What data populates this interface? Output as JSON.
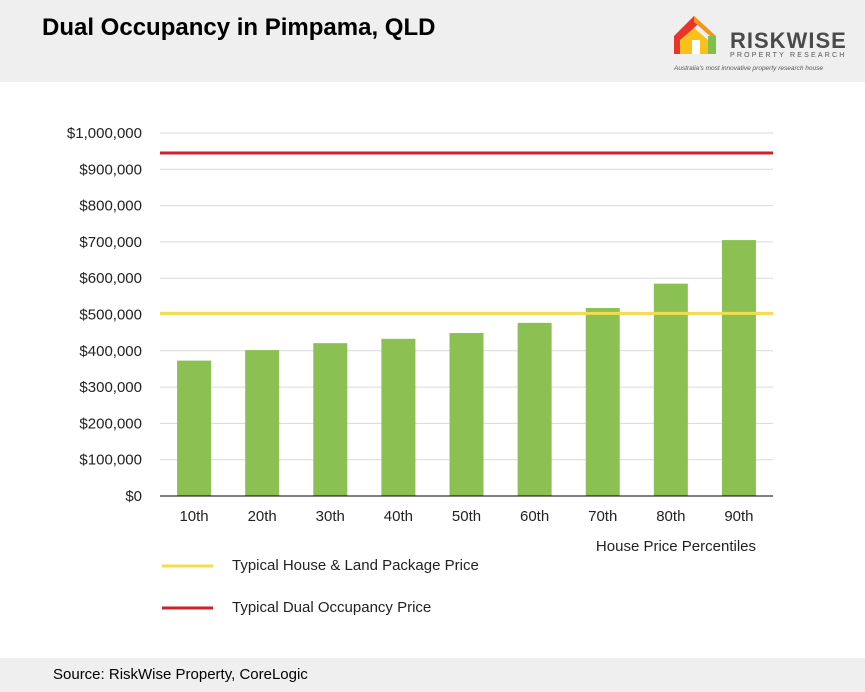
{
  "header": {
    "title": "Dual Occupancy in Pimpama, QLD",
    "logo_name": "RISKWISE",
    "logo_sub": "PROPERTY RESEARCH",
    "logo_tagline": "Australia's most innovative property research house"
  },
  "chart_data": {
    "type": "bar",
    "title": "Dual Occupancy in Pimpama, QLD",
    "xlabel": "House Price Percentiles",
    "ylabel": "",
    "ylim": [
      0,
      1000000
    ],
    "y_ticks": [
      0,
      100000,
      200000,
      300000,
      400000,
      500000,
      600000,
      700000,
      800000,
      900000,
      1000000
    ],
    "y_tick_labels": [
      "$0",
      "$100,000",
      "$200,000",
      "$300,000",
      "$400,000",
      "$500,000",
      "$600,000",
      "$700,000",
      "$800,000",
      "$900,000",
      "$1,000,000"
    ],
    "categories": [
      "10th",
      "20th",
      "30th",
      "40th",
      "50th",
      "60th",
      "70th",
      "80th",
      "90th"
    ],
    "values": [
      373000,
      402000,
      421000,
      433000,
      449000,
      477000,
      518000,
      585000,
      705000
    ],
    "bar_color": "#8bc152",
    "grid": true,
    "reference_lines": [
      {
        "name": "Typical House & Land Package Price",
        "value": 503000,
        "color": "#f4dc4e"
      },
      {
        "name": "Typical Dual Occupancy Price",
        "value": 945000,
        "color": "#cc2229"
      }
    ]
  },
  "footer": {
    "source": "Source: RiskWise Property, CoreLogic"
  }
}
